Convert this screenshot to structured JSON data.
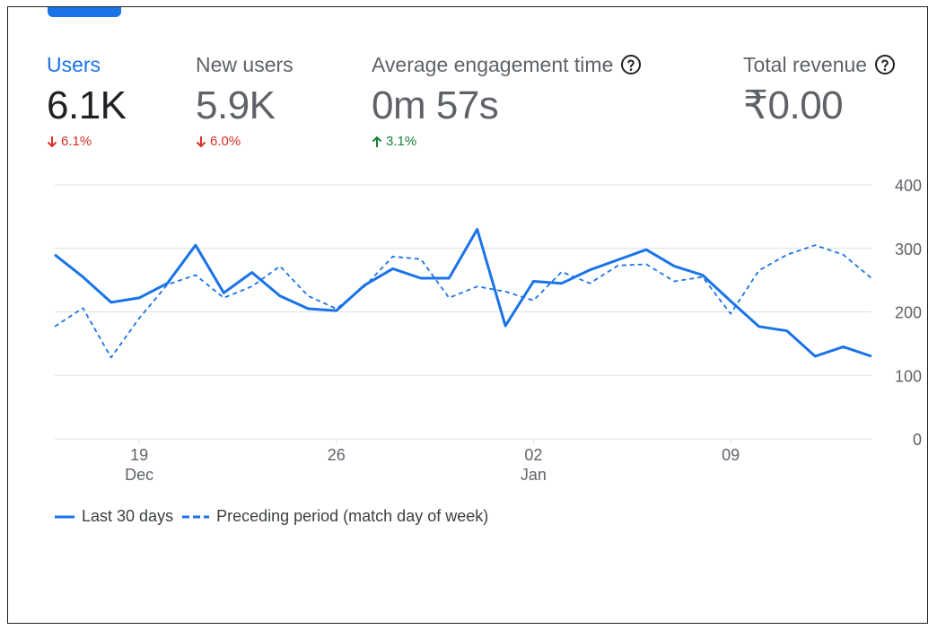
{
  "metrics": [
    {
      "label": "Users",
      "value": "6.1K",
      "change": "6.1%",
      "direction": "down",
      "help": false
    },
    {
      "label": "New users",
      "value": "5.9K",
      "change": "6.0%",
      "direction": "down",
      "help": false
    },
    {
      "label": "Average engagement time",
      "value": "0m 57s",
      "change": "3.1%",
      "direction": "up",
      "help": true
    },
    {
      "label": "Total revenue",
      "value": "₹0.00",
      "change": "",
      "direction": "",
      "help": true
    }
  ],
  "icons": {
    "down": "arrow-down-icon",
    "up": "arrow-up-icon",
    "help": "help-circle-icon"
  },
  "colors": {
    "accent": "#1a73e8",
    "down": "#d93025",
    "up": "#188038",
    "grid": "#e0e0e0",
    "axis_text": "#5f6368"
  },
  "chart_data": {
    "type": "line",
    "x_ticks": [
      {
        "index": 3,
        "day": "19",
        "month": "Dec"
      },
      {
        "index": 10,
        "day": "26",
        "month": ""
      },
      {
        "index": 17,
        "day": "02",
        "month": "Jan"
      },
      {
        "index": 24,
        "day": "09",
        "month": ""
      }
    ],
    "y_ticks": [
      0,
      100,
      200,
      300,
      400
    ],
    "ylim": [
      0,
      400
    ],
    "series": [
      {
        "name": "Last 30 days",
        "style": "solid",
        "values": [
          290,
          255,
          215,
          222,
          245,
          305,
          230,
          262,
          225,
          205,
          202,
          242,
          268,
          253,
          253,
          330,
          178,
          248,
          245,
          266,
          282,
          298,
          272,
          258,
          217,
          177,
          170,
          130,
          145,
          130
        ]
      },
      {
        "name": "Preceding period (match day of week)",
        "style": "dashed",
        "values": [
          177,
          206,
          128,
          190,
          243,
          258,
          222,
          240,
          272,
          225,
          205,
          240,
          287,
          283,
          222,
          240,
          232,
          218,
          263,
          245,
          273,
          275,
          248,
          255,
          197,
          265,
          290,
          305,
          290,
          253
        ]
      }
    ]
  }
}
